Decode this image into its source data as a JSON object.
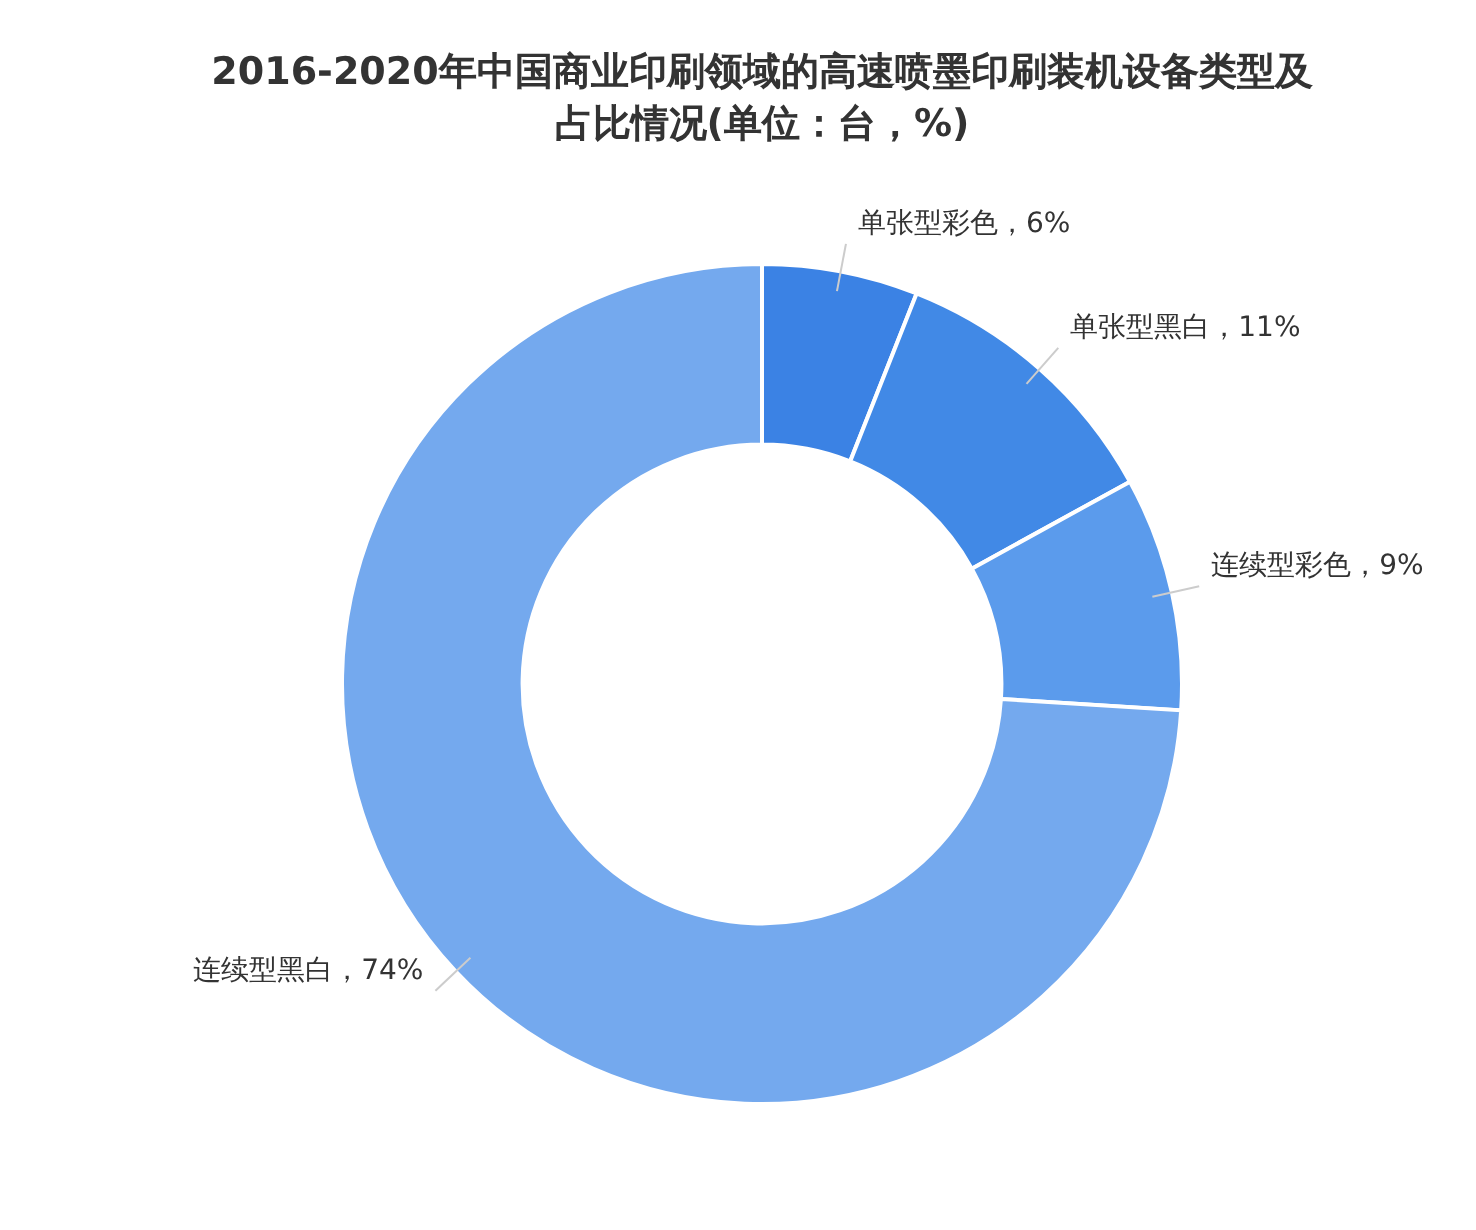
{
  "chart_data": {
    "type": "donut",
    "title": "2016-2020年中国商业印刷领域的高速喷墨印刷装机设备类型及占比情况(单位：台，%)",
    "categories": [
      "单张型彩色",
      "单张型黑白",
      "连续型彩色",
      "连续型黑白"
    ],
    "values": [
      6,
      11,
      9,
      74
    ],
    "colors": [
      "#3b82e4",
      "#4189e6",
      "#5b9bec",
      "#74a9ee"
    ],
    "value_labels": [
      "6%",
      "11%",
      "9%",
      "74%"
    ]
  }
}
